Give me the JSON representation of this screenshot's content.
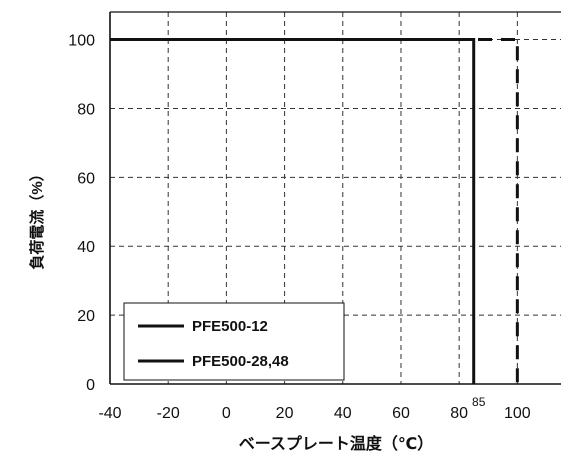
{
  "chart_data": {
    "type": "line",
    "xlabel": "ベースプレート温度（℃）",
    "ylabel": "負荷電流（%）",
    "xlim": [
      -40,
      115
    ],
    "ylim": [
      0,
      108
    ],
    "x_ticks": [
      -40,
      -20,
      0,
      20,
      40,
      60,
      80,
      100
    ],
    "y_ticks": [
      0,
      20,
      40,
      60,
      80,
      100
    ],
    "grid": true,
    "annotations": [
      {
        "text": "85",
        "x": 85,
        "y": 0
      }
    ],
    "legend": {
      "placement": "bottom-left"
    },
    "series": [
      {
        "name": "PFE500-12",
        "style": "dashed",
        "color": "#111111",
        "x": [
          -40,
          100,
          100
        ],
        "y": [
          100,
          100,
          0
        ]
      },
      {
        "name": "PFE500-28,48",
        "style": "solid",
        "color": "#111111",
        "x": [
          -40,
          85,
          85
        ],
        "y": [
          100,
          100,
          0
        ]
      }
    ]
  }
}
